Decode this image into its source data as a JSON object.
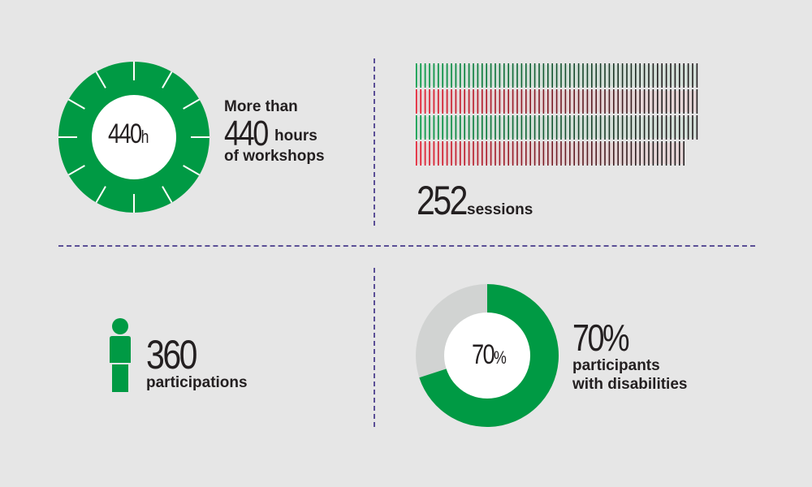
{
  "workshops": {
    "dial_value": "440",
    "dial_unit": "h",
    "line1": "More than",
    "number": "440",
    "number_suffix": "hours",
    "line3": "of workshops",
    "color": "#009a44"
  },
  "sessions": {
    "number": "252",
    "label": "sessions",
    "colors": [
      "#009a44",
      "#e5182c",
      "#231f20"
    ]
  },
  "participations": {
    "number": "360",
    "label": "participations",
    "icon": "person-icon",
    "color": "#009a44"
  },
  "disabilities": {
    "center_value": "70",
    "center_unit": "%",
    "number": "70%",
    "label_line1": "participants",
    "label_line2": "with disabilities",
    "percent": 70,
    "color": "#009a44",
    "rest_color": "#d1d3d2"
  }
}
